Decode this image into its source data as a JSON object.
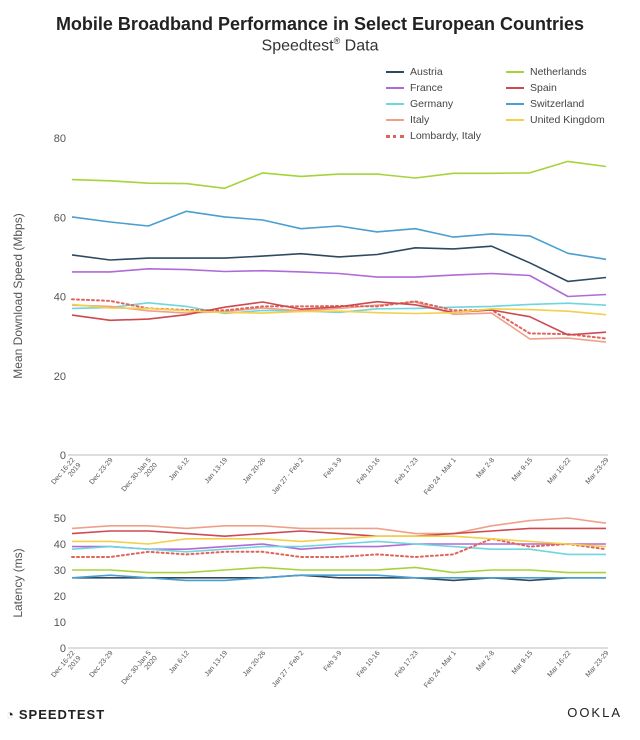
{
  "title": "Mobile Broadband Performance in Select European Countries",
  "subtitle_main": "Speedtest",
  "subtitle_mark": "®",
  "subtitle_tail": " Data",
  "footer": {
    "left_brand": "SPEEDTEST",
    "right_brand": "OOKLA"
  },
  "colors": {
    "Austria": "#2f4a5f",
    "France": "#b06ad8",
    "Germany": "#6fd6dd",
    "Italy": "#f0a08a",
    "Lombardy, Italy": "#e2635a",
    "Netherlands": "#a6d33b",
    "Spain": "#cc4a50",
    "Switzerland": "#4a9fcf",
    "United Kingdom": "#f2d04a"
  },
  "chart_data": [
    {
      "type": "line",
      "title": "",
      "xlabel": "",
      "ylabel": "Mean Download Speed (Mbps)",
      "ylim": [
        0,
        80
      ],
      "yticks": [
        0,
        20,
        40,
        60,
        80
      ],
      "grid": false,
      "legend": "top-right",
      "categories": [
        "Dec 16-22 2019",
        "Dec 23-29",
        "Dec 30-Jan 5 2020",
        "Jan 6-12",
        "Jan 13-19",
        "Jan 20-26",
        "Jan 27 - Feb 2",
        "Feb 3-9",
        "Feb 10-16",
        "Feb 17-23",
        "Feb 24 - Mar 1",
        "Mar 2-8",
        "Mar 9-15",
        "Mar 16-22",
        "Mar 23-29"
      ],
      "series": [
        {
          "name": "Austria",
          "values": [
            50.5,
            49.2,
            49.7,
            49.7,
            49.7,
            50.2,
            50.8,
            50.0,
            50.6,
            52.3,
            52.0,
            52.7,
            48.5,
            43.8,
            44.8
          ]
        },
        {
          "name": "France",
          "values": [
            46.2,
            46.2,
            47.0,
            46.8,
            46.3,
            46.5,
            46.2,
            45.8,
            44.9,
            44.9,
            45.4,
            45.8,
            45.3,
            40.0,
            40.5
          ]
        },
        {
          "name": "Germany",
          "values": [
            37.0,
            37.2,
            38.4,
            37.5,
            35.7,
            36.5,
            36.4,
            36.0,
            36.9,
            37.0,
            37.3,
            37.5,
            38.0,
            38.3,
            37.8
          ]
        },
        {
          "name": "Italy",
          "values": [
            37.8,
            37.5,
            36.4,
            35.8,
            36.2,
            37.1,
            36.4,
            37.0,
            37.8,
            38.6,
            35.5,
            35.8,
            29.3,
            29.5,
            28.5
          ]
        },
        {
          "name": "Lombardy, Italy",
          "dotted": true,
          "values": [
            39.3,
            38.9,
            37.0,
            36.6,
            36.5,
            37.5,
            37.5,
            37.6,
            37.5,
            38.8,
            36.5,
            36.6,
            30.7,
            30.5,
            29.4
          ]
        },
        {
          "name": "Netherlands",
          "values": [
            69.5,
            69.2,
            68.6,
            68.5,
            67.3,
            71.2,
            70.3,
            70.9,
            70.9,
            69.9,
            71.1,
            71.1,
            71.2,
            74.1,
            72.8
          ]
        },
        {
          "name": "Spain",
          "values": [
            35.3,
            34.0,
            34.3,
            35.4,
            37.3,
            38.6,
            36.8,
            37.4,
            38.7,
            37.9,
            36.0,
            36.6,
            34.9,
            30.3,
            31.0
          ]
        },
        {
          "name": "Switzerland",
          "values": [
            60.1,
            58.8,
            57.8,
            61.5,
            60.1,
            59.3,
            57.1,
            57.8,
            56.3,
            57.1,
            55.0,
            55.8,
            55.3,
            50.9,
            49.4
          ]
        },
        {
          "name": "United Kingdom",
          "values": [
            38.0,
            37.1,
            37.0,
            36.4,
            36.0,
            35.8,
            36.2,
            36.3,
            35.9,
            35.7,
            35.9,
            36.9,
            36.7,
            36.3,
            35.4
          ]
        }
      ]
    },
    {
      "type": "line",
      "title": "",
      "xlabel": "",
      "ylabel": "Latency (ms)",
      "ylim": [
        0,
        50
      ],
      "yticks": [
        0,
        10,
        20,
        30,
        40,
        50
      ],
      "grid": false,
      "categories": [
        "Dec 16-22 2019",
        "Dec 23-29",
        "Dec 30-Jan 5 2020",
        "Jan 6-12",
        "Jan 13-19",
        "Jan 20-26",
        "Jan 27 - Feb 2",
        "Feb 3-9",
        "Feb 10-16",
        "Feb 17-23",
        "Feb 24 - Mar 1",
        "Mar 2-8",
        "Mar 9-15",
        "Mar 16-22",
        "Mar 23-29"
      ],
      "series": [
        {
          "name": "Austria",
          "values": [
            27,
            27,
            27,
            27,
            27,
            27,
            28,
            27,
            27,
            27,
            26,
            27,
            26,
            27,
            27
          ]
        },
        {
          "name": "France",
          "values": [
            39,
            39,
            38,
            38,
            39,
            40,
            38,
            39,
            39,
            40,
            40,
            40,
            40,
            40,
            40
          ]
        },
        {
          "name": "Germany",
          "values": [
            38,
            39,
            38,
            37,
            38,
            39,
            39,
            40,
            41,
            40,
            39,
            38,
            38,
            36,
            36
          ]
        },
        {
          "name": "Italy",
          "values": [
            46,
            47,
            47,
            46,
            47,
            47,
            46,
            46,
            46,
            44,
            44,
            47,
            49,
            50,
            48
          ]
        },
        {
          "name": "Lombardy, Italy",
          "dotted": true,
          "values": [
            35,
            35,
            37,
            36,
            37,
            37,
            35,
            35,
            36,
            35,
            36,
            42,
            39,
            40,
            38
          ]
        },
        {
          "name": "Netherlands",
          "values": [
            30,
            30,
            29,
            29,
            30,
            31,
            30,
            30,
            30,
            31,
            29,
            30,
            30,
            29,
            29
          ]
        },
        {
          "name": "Spain",
          "values": [
            44,
            45,
            45,
            44,
            43,
            44,
            45,
            44,
            43,
            43,
            44,
            45,
            46,
            46,
            46
          ]
        },
        {
          "name": "Switzerland",
          "values": [
            27,
            28,
            27,
            26,
            26,
            27,
            28,
            28,
            28,
            27,
            27,
            27,
            27,
            27,
            27
          ]
        },
        {
          "name": "United Kingdom",
          "values": [
            41,
            41,
            40,
            42,
            42,
            42,
            41,
            42,
            43,
            43,
            43,
            42,
            41,
            40,
            39
          ]
        }
      ]
    }
  ],
  "legend": {
    "columns": [
      [
        "Austria",
        "France",
        "Germany",
        "Italy",
        "Lombardy, Italy"
      ],
      [
        "Netherlands",
        "Spain",
        "Switzerland",
        "United Kingdom"
      ]
    ]
  },
  "x_tick_labels": [
    [
      "Dec 16-22",
      "2019"
    ],
    [
      "Dec 23-29"
    ],
    [
      "Dec 30-Jan 5",
      "2020"
    ],
    [
      "Jan 6-12"
    ],
    [
      "Jan 13-19"
    ],
    [
      "Jan 20-26"
    ],
    [
      "Jan 27 - Feb 2"
    ],
    [
      "Feb 3-9"
    ],
    [
      "Feb 10-16"
    ],
    [
      "Feb 17-23"
    ],
    [
      "Feb 24 - Mar 1"
    ],
    [
      "Mar 2-8"
    ],
    [
      "Mar 9-15"
    ],
    [
      "Mar 16-22"
    ],
    [
      "Mar 23-29"
    ]
  ]
}
